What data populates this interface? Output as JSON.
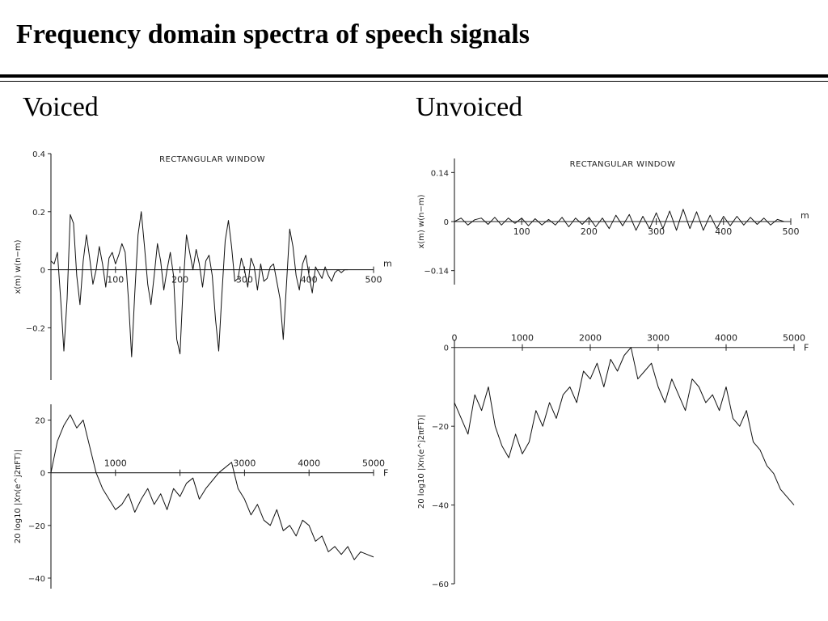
{
  "slide": {
    "title": "Frequency domain spectra of speech signals",
    "left_heading": "Voiced",
    "right_heading": "Unvoiced"
  },
  "chart_data": [
    {
      "id": "voiced_waveform",
      "type": "line",
      "title": "RECTANGULAR WINDOW",
      "ylabel": "x(m) w(n−m)",
      "xlabel": "m",
      "xlim": [
        0,
        500
      ],
      "ylim": [
        -0.38,
        0.4
      ],
      "xticks": [
        100,
        200,
        300,
        400,
        500
      ],
      "yticks": [
        0.4,
        0.2,
        0,
        -0.2
      ],
      "ytick_labels": [
        "0.4",
        "0.2",
        "0",
        "−0.2"
      ],
      "series": [
        {
          "x": [
            0,
            5,
            10,
            15,
            20,
            25,
            30,
            35,
            40,
            45,
            50,
            55,
            60,
            65,
            70,
            75,
            80,
            85,
            90,
            95,
            100,
            105,
            110,
            115,
            120,
            125,
            130,
            135,
            140,
            145,
            150,
            155,
            160,
            165,
            170,
            175,
            180,
            185,
            190,
            195,
            200,
            205,
            210,
            215,
            220,
            225,
            230,
            235,
            240,
            245,
            250,
            255,
            260,
            265,
            270,
            275,
            280,
            285,
            290,
            295,
            300,
            305,
            310,
            315,
            320,
            325,
            330,
            335,
            340,
            345,
            350,
            355,
            360,
            365,
            370,
            375,
            380,
            385,
            390,
            395,
            400,
            405,
            410,
            415,
            420,
            425,
            430,
            435,
            440,
            445,
            450,
            455,
            460
          ],
          "y": [
            0.03,
            0.02,
            0.06,
            -0.1,
            -0.28,
            -0.1,
            0.19,
            0.16,
            -0.02,
            -0.12,
            0.03,
            0.12,
            0.04,
            -0.05,
            0.0,
            0.08,
            0.02,
            -0.06,
            0.04,
            0.06,
            0.02,
            0.05,
            0.09,
            0.06,
            -0.1,
            -0.3,
            -0.08,
            0.12,
            0.2,
            0.08,
            -0.05,
            -0.12,
            -0.02,
            0.09,
            0.03,
            -0.07,
            0.0,
            0.06,
            -0.02,
            -0.24,
            -0.29,
            -0.05,
            0.12,
            0.06,
            0.0,
            0.07,
            0.02,
            -0.06,
            0.03,
            0.05,
            -0.02,
            -0.17,
            -0.28,
            -0.08,
            0.1,
            0.17,
            0.08,
            -0.04,
            -0.03,
            0.04,
            0.0,
            -0.06,
            0.04,
            0.01,
            -0.07,
            0.02,
            -0.04,
            -0.03,
            0.01,
            0.02,
            -0.04,
            -0.1,
            -0.24,
            -0.05,
            0.14,
            0.08,
            -0.02,
            -0.07,
            0.02,
            0.05,
            -0.02,
            -0.08,
            0.01,
            -0.01,
            -0.03,
            0.01,
            -0.02,
            -0.04,
            -0.01,
            0.0,
            -0.01,
            0.0,
            0.0
          ]
        }
      ]
    },
    {
      "id": "voiced_spectrum",
      "type": "line",
      "title": "",
      "ylabel": "20 log10 |Xn(e^j2πFT)|",
      "xlabel": "F",
      "xlim": [
        0,
        5000
      ],
      "ylim": [
        -44,
        26
      ],
      "xticks": [
        1000,
        2000,
        3000,
        4000,
        5000
      ],
      "xtick_labels": [
        "1000",
        "",
        "3000",
        "4000",
        "5000"
      ],
      "yticks": [
        20,
        0,
        -20,
        -40
      ],
      "ytick_labels": [
        "20",
        "0",
        "−20",
        "−40"
      ],
      "series": [
        {
          "x": [
            0,
            100,
            200,
            300,
            400,
            500,
            600,
            700,
            800,
            900,
            1000,
            1100,
            1200,
            1300,
            1400,
            1500,
            1600,
            1700,
            1800,
            1900,
            2000,
            2100,
            2200,
            2300,
            2400,
            2500,
            2600,
            2700,
            2800,
            2900,
            3000,
            3100,
            3200,
            3300,
            3400,
            3500,
            3600,
            3700,
            3800,
            3900,
            4000,
            4100,
            4200,
            4300,
            4400,
            4500,
            4600,
            4700,
            4800,
            4900,
            5000
          ],
          "y": [
            0,
            12,
            18,
            22,
            17,
            20,
            10,
            0,
            -6,
            -10,
            -14,
            -12,
            -8,
            -15,
            -10,
            -6,
            -12,
            -8,
            -14,
            -6,
            -9,
            -4,
            -2,
            -10,
            -6,
            -3,
            0,
            2,
            4,
            -6,
            -10,
            -16,
            -12,
            -18,
            -20,
            -14,
            -22,
            -20,
            -24,
            -18,
            -20,
            -26,
            -24,
            -30,
            -28,
            -31,
            -28,
            -33,
            -30,
            -31,
            -32
          ]
        }
      ]
    },
    {
      "id": "unvoiced_waveform",
      "type": "line",
      "title": "RECTANGULAR WINDOW",
      "ylabel": "x(m) w(n−m)",
      "xlabel": "m",
      "xlim": [
        0,
        500
      ],
      "ylim": [
        -0.18,
        0.18
      ],
      "xticks": [
        100,
        200,
        300,
        400,
        500
      ],
      "yticks": [
        0.14,
        0,
        -0.14
      ],
      "ytick_labels": [
        "0.14",
        "0",
        "−0.14"
      ],
      "series": [
        {
          "x": [
            0,
            10,
            20,
            30,
            40,
            50,
            60,
            70,
            80,
            90,
            100,
            110,
            120,
            130,
            140,
            150,
            160,
            170,
            180,
            190,
            200,
            210,
            220,
            230,
            240,
            250,
            260,
            270,
            280,
            290,
            300,
            310,
            320,
            330,
            340,
            350,
            360,
            370,
            380,
            390,
            400,
            410,
            420,
            430,
            440,
            450,
            460,
            470,
            480,
            490
          ],
          "y": [
            0.0,
            0.01,
            -0.01,
            0.005,
            0.01,
            -0.008,
            0.012,
            -0.01,
            0.01,
            -0.005,
            0.01,
            -0.012,
            0.008,
            -0.01,
            0.006,
            -0.01,
            0.012,
            -0.015,
            0.01,
            -0.008,
            0.012,
            -0.015,
            0.01,
            -0.02,
            0.018,
            -0.012,
            0.02,
            -0.025,
            0.015,
            -0.02,
            0.025,
            -0.02,
            0.03,
            -0.025,
            0.035,
            -0.02,
            0.028,
            -0.025,
            0.018,
            -0.02,
            0.015,
            -0.012,
            0.015,
            -0.01,
            0.012,
            -0.008,
            0.01,
            -0.01,
            0.006,
            0.0
          ]
        }
      ]
    },
    {
      "id": "unvoiced_spectrum",
      "type": "line",
      "title": "",
      "ylabel": "20 log10 |Xn(e^j2πFT)|",
      "xlabel": "F",
      "xlim": [
        0,
        5000
      ],
      "ylim": [
        -60,
        2
      ],
      "xticks": [
        0,
        1000,
        2000,
        3000,
        4000,
        5000
      ],
      "yticks": [
        0,
        -20,
        -40,
        -60
      ],
      "ytick_labels": [
        "0",
        "−20",
        "−40",
        "−60"
      ],
      "series": [
        {
          "x": [
            0,
            100,
            200,
            300,
            400,
            500,
            600,
            700,
            800,
            900,
            1000,
            1100,
            1200,
            1300,
            1400,
            1500,
            1600,
            1700,
            1800,
            1900,
            2000,
            2100,
            2200,
            2300,
            2400,
            2500,
            2600,
            2700,
            2800,
            2900,
            3000,
            3100,
            3200,
            3300,
            3400,
            3500,
            3600,
            3700,
            3800,
            3900,
            4000,
            4100,
            4200,
            4300,
            4400,
            4500,
            4600,
            4700,
            4800,
            4900,
            5000
          ],
          "y": [
            -14,
            -18,
            -22,
            -12,
            -16,
            -10,
            -20,
            -25,
            -28,
            -22,
            -27,
            -24,
            -16,
            -20,
            -14,
            -18,
            -12,
            -10,
            -14,
            -6,
            -8,
            -4,
            -10,
            -3,
            -6,
            -2,
            0,
            -8,
            -6,
            -4,
            -10,
            -14,
            -8,
            -12,
            -16,
            -8,
            -10,
            -14,
            -12,
            -16,
            -10,
            -18,
            -20,
            -16,
            -24,
            -26,
            -30,
            -32,
            -36,
            -38,
            -40
          ]
        }
      ]
    }
  ]
}
